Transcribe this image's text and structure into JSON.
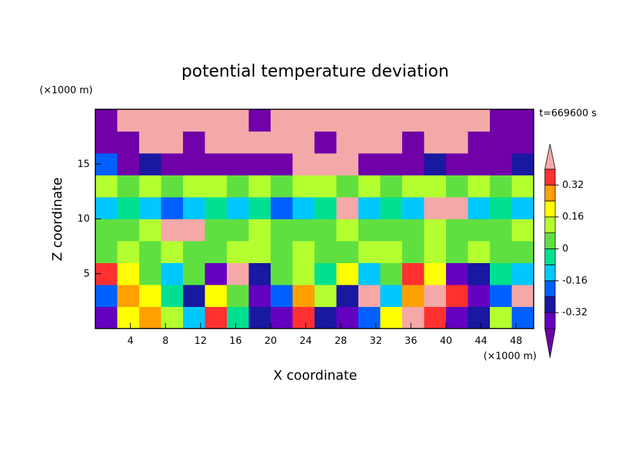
{
  "chart_data": {
    "type": "contour",
    "title": "potential temperature deviation",
    "x_label": "X coordinate",
    "y_label": "Z coordinate",
    "x_units": "(×1000 m)",
    "y_units": "(×1000 m)",
    "time_label": "t=669600 s",
    "xlim": [
      0,
      50
    ],
    "ylim": [
      0,
      20
    ],
    "xticks": [
      4,
      8,
      12,
      16,
      20,
      24,
      28,
      32,
      36,
      40,
      44,
      48
    ],
    "yticks": [
      5,
      10,
      15
    ],
    "x_edges": [
      0,
      2.5,
      5,
      7.5,
      10,
      12.5,
      15,
      17.5,
      20,
      22.5,
      25,
      27.5,
      30,
      32.5,
      35,
      37.5,
      40,
      42.5,
      45,
      47.5,
      50
    ],
    "y_edges": [
      0,
      2,
      4,
      6,
      8,
      10,
      12,
      14,
      16,
      18,
      20
    ],
    "z": [
      [
        -0.36,
        0.2,
        0.28,
        0.12,
        -0.12,
        0.36,
        -0.04,
        -0.28,
        -0.36,
        0.36,
        -0.28,
        -0.36,
        -0.2,
        0.2,
        0.44,
        0.36,
        -0.36,
        -0.28,
        0.12,
        -0.2
      ],
      [
        -0.2,
        0.28,
        0.2,
        -0.04,
        -0.28,
        0.2,
        0.04,
        -0.36,
        -0.2,
        0.28,
        0.12,
        -0.28,
        0.44,
        -0.12,
        0.28,
        0.44,
        0.36,
        -0.36,
        -0.2,
        0.44
      ],
      [
        0.36,
        0.2,
        0.04,
        -0.12,
        0.04,
        -0.36,
        0.44,
        -0.28,
        0.04,
        0.12,
        -0.04,
        0.2,
        -0.12,
        0.04,
        0.36,
        0.2,
        -0.36,
        -0.28,
        -0.04,
        -0.12
      ],
      [
        0.04,
        0.12,
        0.04,
        0.12,
        0.04,
        0.04,
        0.12,
        0.12,
        0.04,
        0.12,
        0.04,
        0.04,
        0.12,
        0.12,
        0.04,
        0.12,
        0.04,
        0.12,
        0.04,
        0.04
      ],
      [
        0.04,
        0.04,
        0.12,
        0.44,
        0.44,
        0.04,
        0.04,
        0.12,
        0.04,
        0.04,
        0.04,
        0.12,
        0.04,
        0.04,
        0.04,
        0.12,
        0.04,
        0.04,
        0.04,
        0.12
      ],
      [
        -0.12,
        -0.04,
        -0.12,
        -0.2,
        -0.12,
        -0.04,
        -0.12,
        -0.04,
        -0.2,
        -0.12,
        -0.04,
        0.44,
        -0.12,
        -0.04,
        -0.12,
        0.44,
        0.44,
        -0.12,
        -0.04,
        -0.12
      ],
      [
        0.12,
        0.04,
        0.12,
        0.04,
        0.12,
        0.12,
        0.04,
        0.12,
        0.04,
        0.12,
        0.12,
        0.04,
        0.12,
        0.04,
        0.12,
        0.12,
        0.04,
        0.12,
        0.04,
        0.12
      ],
      [
        -0.2,
        -0.44,
        -0.28,
        -0.44,
        -0.44,
        -0.44,
        -0.44,
        -0.44,
        -0.44,
        0.44,
        0.44,
        0.44,
        -0.44,
        -0.44,
        -0.44,
        -0.28,
        -0.44,
        -0.44,
        -0.44,
        -0.28
      ],
      [
        -0.44,
        -0.44,
        0.44,
        0.44,
        -0.44,
        0.44,
        0.44,
        0.44,
        0.44,
        0.44,
        -0.44,
        0.44,
        0.44,
        0.44,
        -0.44,
        0.44,
        0.44,
        -0.44,
        -0.44,
        -0.44
      ],
      [
        -0.44,
        0.44,
        0.44,
        0.44,
        0.44,
        0.44,
        0.44,
        -0.44,
        0.44,
        0.44,
        0.44,
        0.44,
        0.44,
        0.44,
        0.44,
        0.44,
        0.44,
        0.44,
        -0.44,
        -0.44
      ]
    ],
    "levels": [
      -0.4,
      -0.32,
      -0.24,
      -0.16,
      -0.08,
      0,
      0.08,
      0.16,
      0.24,
      0.32,
      0.4
    ],
    "colors": [
      "#7000a8",
      "#6400c0",
      "#1818a0",
      "#0060ff",
      "#00c8ff",
      "#00e090",
      "#60e040",
      "#b4ff30",
      "#ffff00",
      "#ffa000",
      "#ff3030",
      "#f4a8a8"
    ],
    "colorbar_ticks": [
      -0.32,
      -0.16,
      0,
      0.16,
      0.32
    ]
  }
}
